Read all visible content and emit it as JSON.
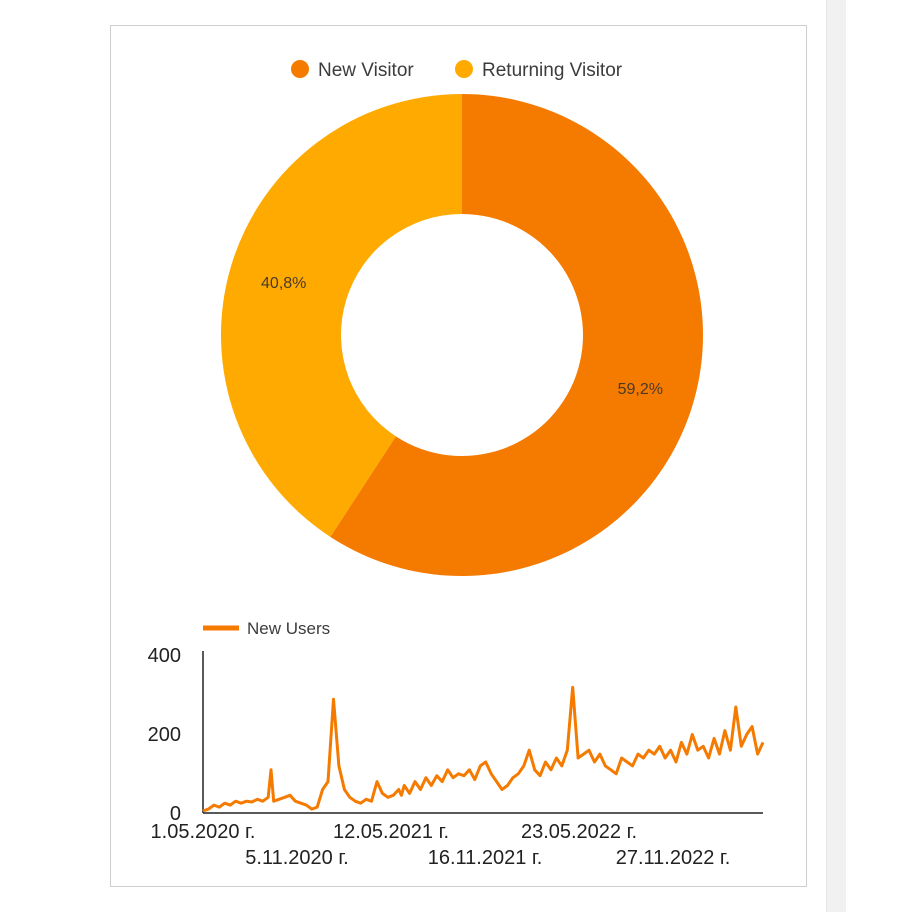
{
  "donut": {
    "type": "pie",
    "legend": [
      {
        "label": "New Visitor",
        "color": "#f57a00"
      },
      {
        "label": "Returning Visitor",
        "color": "#ffaa00"
      }
    ],
    "slices": [
      {
        "name": "New Visitor",
        "value": 59.2,
        "label": "59,2%",
        "color": "#f57a00"
      },
      {
        "name": "Returning Visitor",
        "value": 40.8,
        "label": "40,8%",
        "color": "#ffaa00"
      }
    ]
  },
  "chart_data": {
    "type": "line",
    "legend": "New Users",
    "color": "#f57a00",
    "ylim": [
      0,
      400
    ],
    "y_ticks": [
      "400",
      "200",
      "0"
    ],
    "x_ticks": [
      "1.05.2020 г.",
      "5.11.2020 г.",
      "12.05.2021 г.",
      "16.11.2021 г.",
      "23.05.2022 г.",
      "27.11.2022 г."
    ],
    "series": [
      {
        "name": "New Users",
        "x": [
          0,
          2,
          4,
          6,
          8,
          10,
          12,
          14,
          16,
          18,
          20,
          22,
          24,
          25,
          26,
          28,
          30,
          32,
          34,
          36,
          38,
          40,
          42,
          44,
          46,
          48,
          50,
          52,
          54,
          56,
          58,
          60,
          62,
          64,
          66,
          68,
          70,
          72,
          73,
          74,
          76,
          78,
          80,
          82,
          84,
          86,
          88,
          90,
          92,
          94,
          96,
          98,
          100,
          102,
          104,
          106,
          108,
          110,
          112,
          114,
          116,
          118,
          120,
          122,
          124,
          126,
          128,
          130,
          132,
          134,
          136,
          138,
          140,
          142,
          144,
          146,
          148,
          150,
          152,
          154,
          156,
          158,
          160,
          162,
          164,
          166,
          168,
          170,
          172,
          174,
          176,
          178,
          180,
          182,
          184,
          186,
          188,
          190,
          192,
          194,
          196,
          198,
          200,
          202,
          204,
          206
        ],
        "y": [
          5,
          10,
          20,
          15,
          25,
          20,
          30,
          25,
          30,
          28,
          35,
          30,
          40,
          110,
          30,
          35,
          40,
          45,
          30,
          25,
          20,
          10,
          15,
          60,
          80,
          290,
          120,
          60,
          40,
          30,
          25,
          35,
          30,
          80,
          50,
          40,
          45,
          60,
          45,
          70,
          50,
          80,
          60,
          90,
          70,
          95,
          80,
          110,
          90,
          100,
          95,
          110,
          85,
          120,
          130,
          100,
          80,
          60,
          70,
          90,
          100,
          120,
          160,
          110,
          95,
          130,
          110,
          140,
          120,
          160,
          320,
          140,
          150,
          160,
          130,
          150,
          120,
          110,
          100,
          140,
          130,
          120,
          150,
          140,
          160,
          150,
          170,
          140,
          160,
          130,
          180,
          150,
          200,
          160,
          170,
          140,
          190,
          150,
          210,
          160,
          270,
          170,
          200,
          220,
          150,
          180
        ]
      }
    ]
  }
}
